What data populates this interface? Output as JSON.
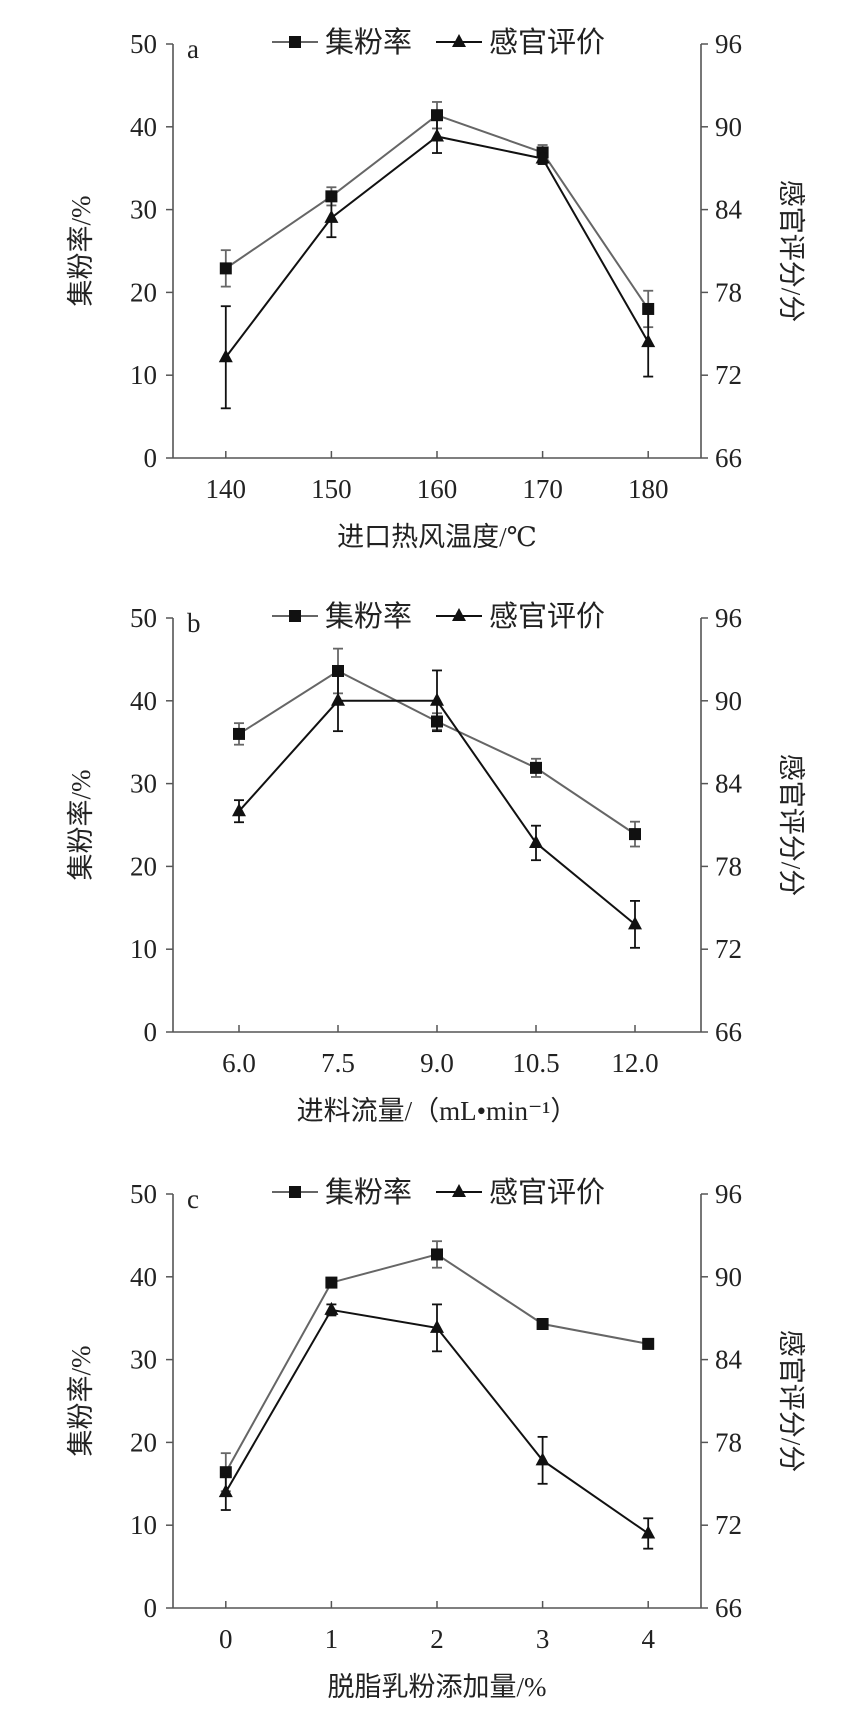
{
  "colors": {
    "series_rate": "#666666",
    "series_sensory": "#111111",
    "axis": "#555555"
  },
  "chart_data": [
    {
      "type": "line",
      "panel": "a",
      "xlabel": "进口热风温度/℃",
      "ylabel": "集粉率/%",
      "y2label": "感官评分/分",
      "x": [
        140,
        150,
        160,
        170,
        180
      ],
      "x_tick_labels": [
        "140",
        "150",
        "160",
        "170",
        "180"
      ],
      "xlim": [
        135,
        185
      ],
      "ylim": [
        0,
        50
      ],
      "y_ticks": [
        0,
        10,
        20,
        30,
        40,
        50
      ],
      "y2lim": [
        66,
        96
      ],
      "y2_ticks": [
        66,
        72,
        78,
        84,
        90,
        96
      ],
      "legend": "top-center",
      "series": [
        {
          "name": "集粉率",
          "axis": "left",
          "marker": "square",
          "values": [
            22.9,
            31.6,
            41.4,
            36.9,
            18.0
          ],
          "errors": [
            2.2,
            1.1,
            1.6,
            0.9,
            2.2
          ]
        },
        {
          "name": "感官评价",
          "axis": "right",
          "marker": "triangle",
          "values": [
            73.3,
            83.4,
            89.3,
            87.7,
            74.4
          ],
          "errors": [
            3.7,
            1.4,
            1.2,
            0.4,
            2.5
          ]
        }
      ]
    },
    {
      "type": "line",
      "panel": "b",
      "xlabel": "进料流量/（mL•min⁻¹）",
      "ylabel": "集粉率/%",
      "y2label": "感官评分/分",
      "x": [
        6.0,
        7.5,
        9.0,
        10.5,
        12.0
      ],
      "x_tick_labels": [
        "6.0",
        "7.5",
        "9.0",
        "10.5",
        "12.0"
      ],
      "xlim": [
        5,
        13
      ],
      "ylim": [
        0,
        50
      ],
      "y_ticks": [
        0,
        10,
        20,
        30,
        40,
        50
      ],
      "y2lim": [
        66,
        96
      ],
      "y2_ticks": [
        66,
        72,
        78,
        84,
        90,
        96
      ],
      "legend": "top-center",
      "series": [
        {
          "name": "集粉率",
          "axis": "left",
          "marker": "square",
          "values": [
            36.0,
            43.6,
            37.5,
            31.9,
            23.9
          ],
          "errors": [
            1.3,
            2.7,
            1.0,
            1.1,
            1.5
          ]
        },
        {
          "name": "感官评价",
          "axis": "right",
          "marker": "triangle",
          "values": [
            82.0,
            90.0,
            90.0,
            79.7,
            73.8
          ],
          "errors": [
            0.8,
            2.2,
            2.2,
            1.25,
            1.7
          ]
        }
      ]
    },
    {
      "type": "line",
      "panel": "c",
      "xlabel": "脱脂乳粉添加量/%",
      "ylabel": "集粉率/%",
      "y2label": "感官评分/分",
      "x": [
        0,
        1,
        2,
        3,
        4
      ],
      "x_tick_labels": [
        "0",
        "1",
        "2",
        "3",
        "4"
      ],
      "xlim": [
        -0.5,
        4.5
      ],
      "ylim": [
        0,
        50
      ],
      "y_ticks": [
        0,
        10,
        20,
        30,
        40,
        50
      ],
      "y2lim": [
        66,
        96
      ],
      "y2_ticks": [
        66,
        72,
        78,
        84,
        90,
        96
      ],
      "legend": "top-center",
      "series": [
        {
          "name": "集粉率",
          "axis": "left",
          "marker": "square",
          "values": [
            16.4,
            39.3,
            42.7,
            34.3,
            31.9
          ],
          "errors": [
            2.3,
            0.4,
            1.6,
            0.6,
            0.6
          ]
        },
        {
          "name": "感官评价",
          "axis": "right",
          "marker": "triangle",
          "values": [
            74.4,
            87.6,
            86.3,
            76.7,
            71.4
          ],
          "errors": [
            1.3,
            0.4,
            1.7,
            1.7,
            1.1
          ]
        }
      ]
    }
  ]
}
